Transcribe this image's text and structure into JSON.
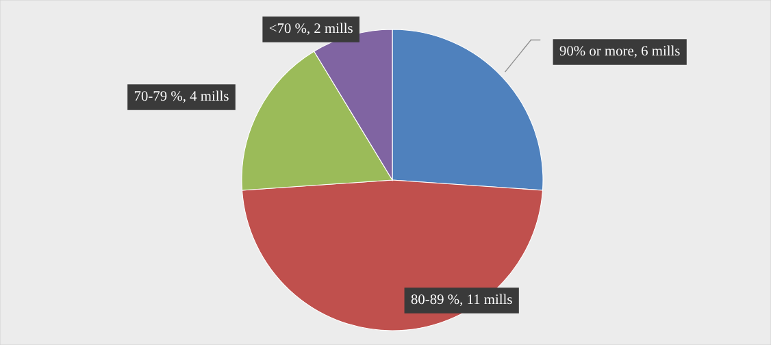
{
  "chart_data": {
    "type": "pie",
    "categories": [
      "90% or more",
      "80-89 %",
      "70-79 %",
      "<70 %"
    ],
    "values": [
      6,
      11,
      4,
      2
    ],
    "value_labels": [
      "6 mills",
      "11 mills",
      "4 mills",
      "2 mills"
    ],
    "colors": [
      "#4f81bd",
      "#c0504d",
      "#9bbb59",
      "#8064a2"
    ],
    "legend": false
  }
}
